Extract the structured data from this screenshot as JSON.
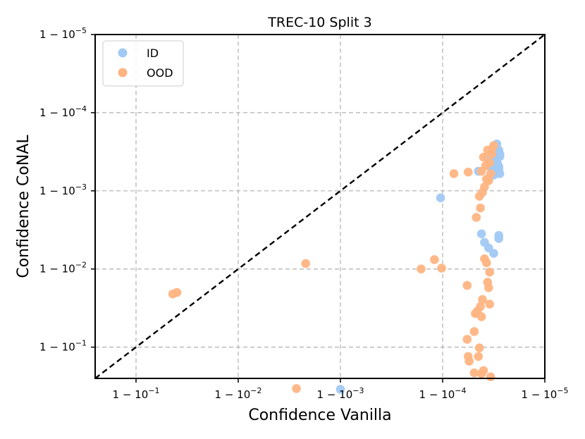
{
  "chart_data": {
    "type": "scatter",
    "title": "TREC-10 Split 3",
    "xlabel": "Confidence Vanilla",
    "ylabel": "Confidence CoNAL",
    "x_scale": "log of (1 - confidence)",
    "y_scale": "log of (1 - confidence)",
    "x_ticks": [
      {
        "exp": -1,
        "label": "1 − 10^−1"
      },
      {
        "exp": -2,
        "label": "1 − 10^−2"
      },
      {
        "exp": -3,
        "label": "1 − 10^−3"
      },
      {
        "exp": -4,
        "label": "1 − 10^−4"
      },
      {
        "exp": -5,
        "label": "1 − 10^−5"
      }
    ],
    "y_ticks": [
      {
        "exp": -1,
        "label": "1 − 10^−1"
      },
      {
        "exp": -2,
        "label": "1 − 10^−2"
      },
      {
        "exp": -3,
        "label": "1 − 10^−3"
      },
      {
        "exp": -4,
        "label": "1 − 10^−4"
      },
      {
        "exp": -5,
        "label": "1 − 10^−5"
      }
    ],
    "x_exp_range": [
      -0.6,
      -5.0
    ],
    "y_exp_range": [
      -0.6,
      -5.0
    ],
    "grid": true,
    "legend_position": "top-left",
    "diagonal_line": true,
    "colors": {
      "ID": "#a1c9f4",
      "OOD": "#ffb482"
    },
    "series": [
      {
        "name": "ID",
        "points_exp": [
          [
            -3.98,
            -2.91
          ],
          [
            -4.44,
            -3.43
          ],
          [
            -4.35,
            -3.25
          ],
          [
            -4.49,
            -3.55
          ],
          [
            -4.49,
            -3.45
          ],
          [
            -4.51,
            -3.42
          ],
          [
            -4.53,
            -3.38
          ],
          [
            -4.55,
            -3.31
          ],
          [
            -4.52,
            -3.37
          ],
          [
            -4.54,
            -3.43
          ],
          [
            -4.56,
            -3.47
          ],
          [
            -4.53,
            -3.51
          ],
          [
            -4.55,
            -3.52
          ],
          [
            -4.52,
            -3.55
          ],
          [
            -4.5,
            -3.4
          ],
          [
            -4.48,
            -3.29
          ],
          [
            -4.54,
            -3.34
          ],
          [
            -4.56,
            -3.22
          ],
          [
            -4.55,
            -3.28
          ],
          [
            -4.51,
            -3.25
          ],
          [
            -4.5,
            -3.2
          ],
          [
            -4.47,
            -3.3
          ],
          [
            -4.53,
            -3.6
          ],
          [
            -4.52,
            -3.45
          ],
          [
            -4.46,
            -3.35
          ],
          [
            -4.56,
            -3.44
          ],
          [
            -4.38,
            -2.45
          ],
          [
            -4.41,
            -2.34
          ],
          [
            -4.45,
            -2.27
          ],
          [
            -4.5,
            -2.2
          ],
          [
            -4.55,
            -2.39
          ],
          [
            -4.55,
            -2.43
          ],
          [
            -3.0,
            -0.46
          ]
        ]
      },
      {
        "name": "OOD",
        "points_exp": [
          [
            -1.36,
            -1.68
          ],
          [
            -1.4,
            -1.7
          ],
          [
            -2.66,
            -2.07
          ],
          [
            -2.57,
            -0.47
          ],
          [
            -3.79,
            -2.0
          ],
          [
            -3.92,
            -2.12
          ],
          [
            -3.99,
            -2.01
          ],
          [
            -4.11,
            -3.22
          ],
          [
            -4.25,
            -3.24
          ],
          [
            -4.38,
            -3.25
          ],
          [
            -4.4,
            -3.43
          ],
          [
            -4.44,
            -3.52
          ],
          [
            -4.48,
            -3.47
          ],
          [
            -4.42,
            -3.32
          ],
          [
            -4.46,
            -3.36
          ],
          [
            -4.48,
            -3.53
          ],
          [
            -4.5,
            -3.58
          ],
          [
            -4.36,
            -2.93
          ],
          [
            -4.39,
            -2.98
          ],
          [
            -4.41,
            -3.05
          ],
          [
            -4.43,
            -3.15
          ],
          [
            -4.45,
            -3.13
          ],
          [
            -4.47,
            -3.22
          ],
          [
            -4.33,
            -2.66
          ],
          [
            -4.37,
            -2.78
          ],
          [
            -4.41,
            -2.13
          ],
          [
            -4.43,
            -2.08
          ],
          [
            -4.46,
            -1.96
          ],
          [
            -4.44,
            -1.83
          ],
          [
            -4.45,
            -1.76
          ],
          [
            -4.24,
            -1.79
          ],
          [
            -4.39,
            -1.61
          ],
          [
            -4.46,
            -1.55
          ],
          [
            -4.37,
            -1.52
          ],
          [
            -4.32,
            -1.43
          ],
          [
            -4.34,
            -1.46
          ],
          [
            -4.38,
            -1.39
          ],
          [
            -4.31,
            -1.2
          ],
          [
            -4.36,
            -0.99
          ],
          [
            -4.24,
            -1.1
          ],
          [
            -4.25,
            -0.88
          ],
          [
            -4.26,
            -0.82
          ],
          [
            -4.35,
            -0.88
          ],
          [
            -4.4,
            -0.7
          ],
          [
            -4.31,
            -0.67
          ],
          [
            -4.38,
            -0.66
          ],
          [
            -4.47,
            -0.62
          ]
        ]
      }
    ]
  }
}
